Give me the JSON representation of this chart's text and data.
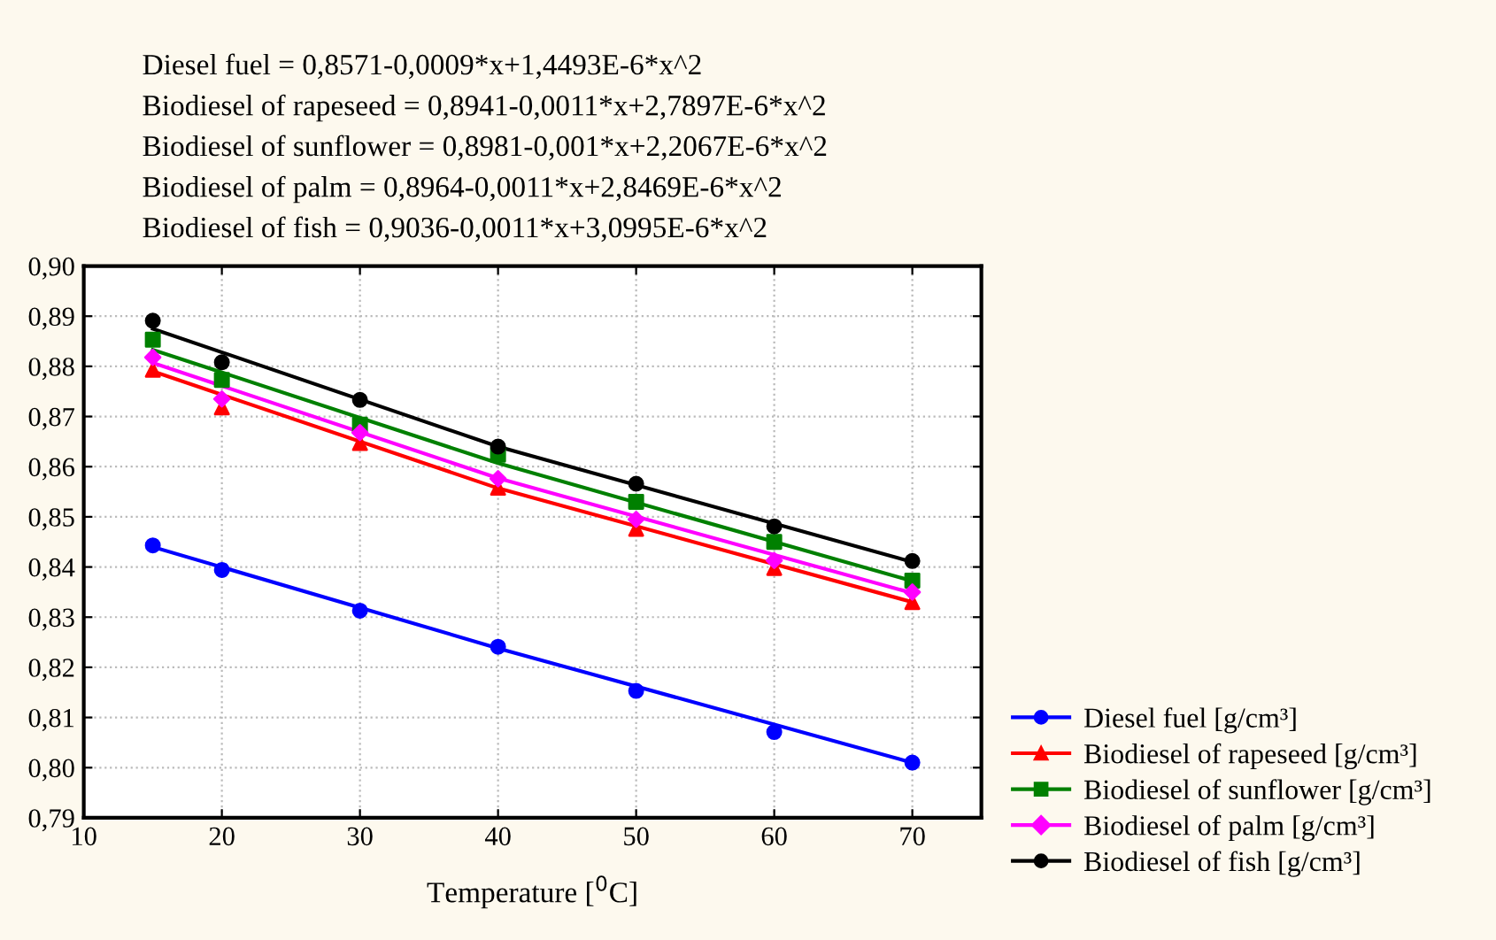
{
  "chart_data": {
    "type": "scatter",
    "xlabel": "Temperature [$^{0}$C]",
    "annotations": [
      "Diesel fuel = 0,8571-0,0009*x+1,4493E-6*x^2",
      "Biodiesel of rapeseed = 0,8941-0,0011*x+2,7897E-6*x^2",
      "Biodiesel of sunflower = 0,8981-0,001*x+2,2067E-6*x^2",
      "Biodiesel of palm = 0,8964-0,0011*x+2,8469E-6*x^2",
      "Biodiesel of fish = 0,9036-0,0011*x+3,0995E-6*x^2"
    ],
    "x": [
      15,
      20,
      30,
      40,
      50,
      60,
      70
    ],
    "series": [
      {
        "name": "Diesel fuel [g/cm³]",
        "color": "#0000ff",
        "marker": "circle",
        "values": [
          0.8443,
          0.8394,
          0.8313,
          0.8241,
          0.8153,
          0.8071,
          0.801
        ]
      },
      {
        "name": "Biodiesel of rapeseed [g/cm³]",
        "color": "#ff0000",
        "marker": "triangle",
        "values": [
          0.8793,
          0.8718,
          0.8647,
          0.8558,
          0.8476,
          0.8398,
          0.833
        ]
      },
      {
        "name": "Biodiesel of sunflower [g/cm³]",
        "color": "#008000",
        "marker": "square",
        "values": [
          0.8853,
          0.8773,
          0.8684,
          0.8624,
          0.853,
          0.845,
          0.8373
        ]
      },
      {
        "name": "Biodiesel of palm [g/cm³]",
        "color": "#ff00ff",
        "marker": "diamond",
        "values": [
          0.8818,
          0.8735,
          0.8668,
          0.8576,
          0.8495,
          0.8413,
          0.835
        ]
      },
      {
        "name": "Biodiesel of fish [g/cm³]",
        "color": "#000000",
        "marker": "circle",
        "values": [
          0.8891,
          0.8808,
          0.8733,
          0.864,
          0.8566,
          0.8481,
          0.8412
        ]
      },
      {
        "type": "line",
        "color": "#0000ff",
        "x": [
          15,
          40,
          70
        ],
        "values": [
          0.844,
          0.8238,
          0.801
        ]
      },
      {
        "type": "line",
        "color": "#ff0000",
        "x": [
          15,
          40,
          70
        ],
        "values": [
          0.879,
          0.8557,
          0.833
        ]
      },
      {
        "type": "line",
        "color": "#008000",
        "x": [
          15,
          40,
          70
        ],
        "values": [
          0.8833,
          0.8607,
          0.8372
        ]
      },
      {
        "type": "line",
        "color": "#ff00ff",
        "x": [
          15,
          40,
          70
        ],
        "values": [
          0.8807,
          0.8577,
          0.8348
        ]
      },
      {
        "type": "line",
        "color": "#000000",
        "x": [
          15,
          40,
          70
        ],
        "values": [
          0.8875,
          0.864,
          0.841
        ]
      }
    ],
    "xlim": [
      10,
      75
    ],
    "xticks": [
      10,
      20,
      30,
      40,
      50,
      60,
      70
    ],
    "ylim": [
      0.79,
      0.9
    ],
    "yticks": [
      {
        "value": 0.79,
        "label": "0,79"
      },
      {
        "value": 0.8,
        "label": "0,80"
      },
      {
        "value": 0.81,
        "label": "0,81"
      },
      {
        "value": 0.82,
        "label": "0,82"
      },
      {
        "value": 0.83,
        "label": "0,83"
      },
      {
        "value": 0.84,
        "label": "0,84"
      },
      {
        "value": 0.85,
        "label": "0,85"
      },
      {
        "value": 0.86,
        "label": "0,86"
      },
      {
        "value": 0.87,
        "label": "0,87"
      },
      {
        "value": 0.88,
        "label": "0,88"
      },
      {
        "value": 0.89,
        "label": "0,89"
      },
      {
        "value": 0.9,
        "label": "0,90"
      }
    ],
    "grid": true,
    "legend": "bottom right"
  }
}
